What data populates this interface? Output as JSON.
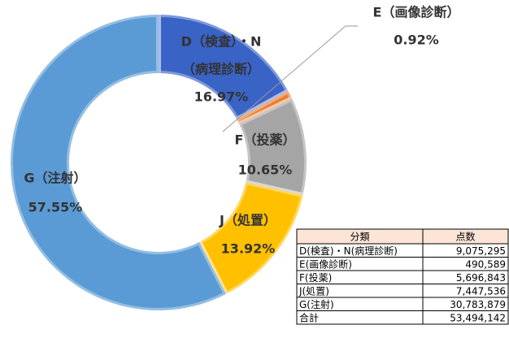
{
  "chart_data": {
    "type": "donut",
    "categories": [
      [
        "D（検査）・N",
        "（病理診断）"
      ],
      [
        "E（画像診断）"
      ],
      [
        "F（投薬）"
      ],
      [
        "J（処置）"
      ],
      [
        "G（注射）"
      ]
    ],
    "values": [
      16.97,
      0.92,
      10.65,
      13.92,
      57.55
    ],
    "value_labels": [
      "16.97%",
      "0.92%",
      "10.65%",
      "13.92%",
      "57.55%"
    ],
    "colors": [
      "#3a63c6",
      "#ed7d31",
      "#a5a5a5",
      "#ffc000",
      "#5b9bd5"
    ]
  },
  "table": {
    "header": [
      "分類",
      "点数"
    ],
    "rows": [
      [
        "D(検査)・N(病理診断)",
        "9,075,295"
      ],
      [
        "E(画像診断)",
        "490,589"
      ],
      [
        "F(投薬)",
        "5,696,843"
      ],
      [
        "J(処置)",
        "7,447,536"
      ],
      [
        "G(注射)",
        "30,783,879"
      ],
      [
        "合計",
        "53,494,142"
      ]
    ]
  }
}
